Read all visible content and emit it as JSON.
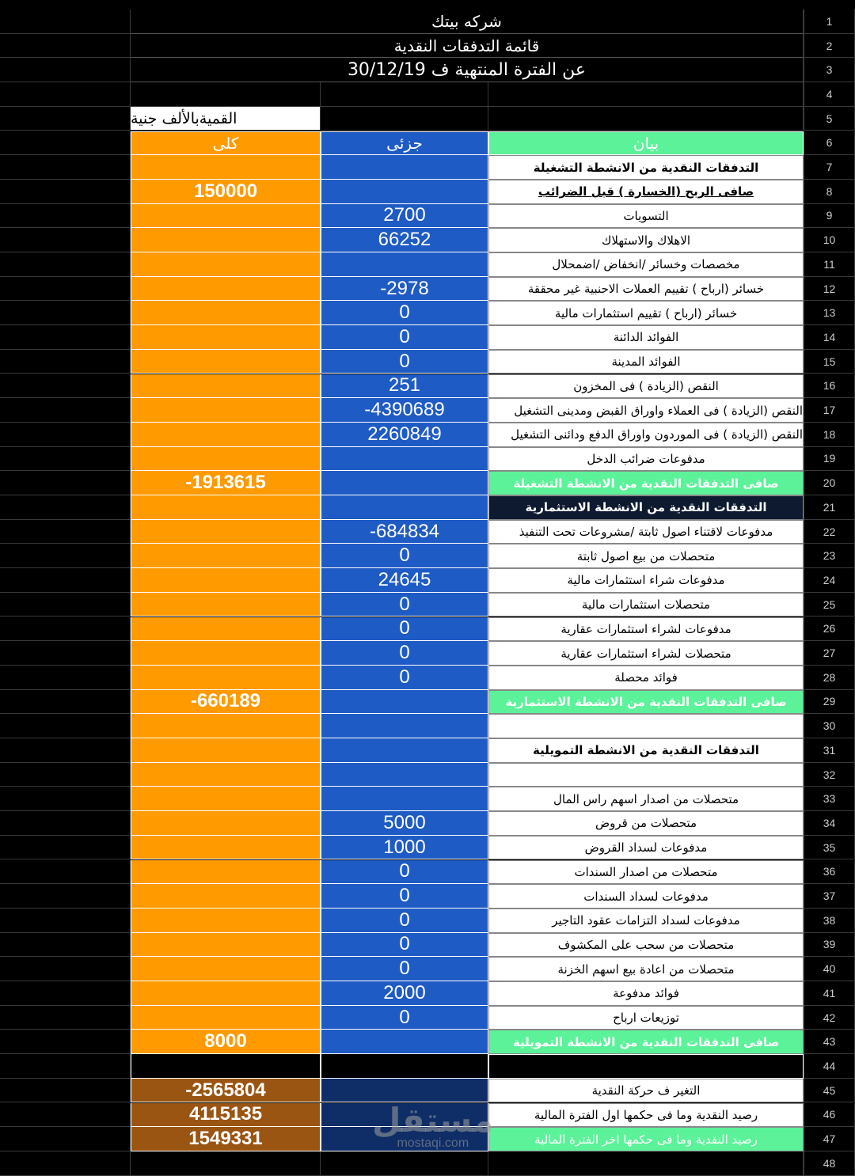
{
  "header": {
    "title": "شركه بيتك",
    "subtitle": "قائمة التدفقات النقدية",
    "period": "عن الفترة المنتهية ف 30/12/19",
    "unit": "القميةبالألف جنية",
    "columns": {
      "total": "كلى",
      "partial": "جزئى",
      "label": "بيان"
    }
  },
  "rows": [
    {
      "label": "التدفقات النقدية من الانشطة التشغيلة"
    },
    {
      "label": "صافى الربح (الخسارة ) قبل الضرائب",
      "total": 150000
    },
    {
      "label": "التسويات",
      "partial": 2700
    },
    {
      "label": "الاهلاك والاستهلاك",
      "partial": 66252
    },
    {
      "label": "مخصصات وخسائر /انخفاض /اضمحلال"
    },
    {
      "label": "خسائر (ارباح ) تقييم العملات الاحنبية غير محققة",
      "partial": -2978
    },
    {
      "label": "خسائر (ارباح ) تقييم استثمارات مالية",
      "partial": 0
    },
    {
      "label": "الفوائد الدائنة",
      "partial": 0
    },
    {
      "label": "الفوائد المدينة",
      "partial": 0
    },
    {
      "label": "النقص (الزيادة ) فى المخزون",
      "partial": 251
    },
    {
      "label": "النقص (الزيادة ) فى العملاء واوراق القبض ومدينى التشغيل",
      "partial": -4390689
    },
    {
      "label": "النقص (الزيادة ) فى الموردون واوراق الدفع ودائنى التشغيل",
      "partial": 2260849
    },
    {
      "label": "مدفوعات ضرائب الدخل"
    },
    {
      "label": "صافى التدفقات النقدية من الانشطة التشغيلة",
      "total": -1913615
    },
    {
      "label": "التدفقات النقدية من الانشطة الاستثمارية"
    },
    {
      "label": "مدفوعات لاقتناء اصول ثابتة /مشروعات تحت التنفيذ",
      "partial": -684834
    },
    {
      "label": "متحصلات من بيع اصول ثابتة",
      "partial": 0
    },
    {
      "label": "مدفوعات شراء استثمارات مالية",
      "partial": 24645
    },
    {
      "label": "متحصلات استثمارات مالية",
      "partial": 0
    },
    {
      "label": "مدفوعات لشراء استثمارات عقارية",
      "partial": 0
    },
    {
      "label": "متحصلات لشراء استثمارات عقارية",
      "partial": 0
    },
    {
      "label": "فوائد محصلة",
      "partial": 0
    },
    {
      "label": "صافى التدفقات النقدية من الانشطة الاستثمارية",
      "total": -660189
    },
    {},
    {
      "label": "التدفقات النقدية من الانشطة التمويلية"
    },
    {},
    {
      "label": "متحصلات من اصدار اسهم راس المال"
    },
    {
      "label": "متحصلات من قروض",
      "partial": 5000
    },
    {
      "label": "مدفوعات لسداد القروض",
      "partial": 1000
    },
    {
      "label": "متحصلات من اصدار السندات",
      "partial": 0
    },
    {
      "label": "مدفوعات لسداد السندات",
      "partial": 0
    },
    {
      "label": "مدفوعات لسداد التزامات عقود التاجير",
      "partial": 0
    },
    {
      "label": "متحصلات من سحب على المكشوف",
      "partial": 0
    },
    {
      "label": "متحصلات من اعادة بيع اسهم الخزنة",
      "partial": 0
    },
    {
      "label": "فوائد مدفوعة",
      "partial": 2000
    },
    {
      "label": "توزيعات ارباح",
      "partial": 0
    },
    {
      "label": "صافى التدفقات النقدية من الانشطة التمويلية",
      "total": 8000
    },
    {},
    {
      "label": "التغير ف حركة النقدية",
      "total": -2565804
    },
    {
      "label": "رصيد النقدية وما فى حكمها اول الفترة المالية",
      "total": 4115135
    },
    {
      "label": "رصيد النقدية وما فى حكمها اخر الفترة المالية",
      "total": 1549331
    }
  ],
  "row_numbers": [
    1,
    2,
    3,
    4,
    5,
    6,
    7,
    8,
    9,
    10,
    11,
    12,
    13,
    14,
    15,
    16,
    17,
    18,
    19,
    20,
    21,
    22,
    23,
    24,
    25,
    26,
    27,
    28,
    29,
    30,
    31,
    32,
    33,
    34,
    35,
    36,
    37,
    38,
    39,
    40,
    41,
    42,
    43,
    44,
    45,
    46,
    47,
    48
  ],
  "watermark": {
    "brand": "مستقل",
    "site": "mostaqi.com"
  }
}
